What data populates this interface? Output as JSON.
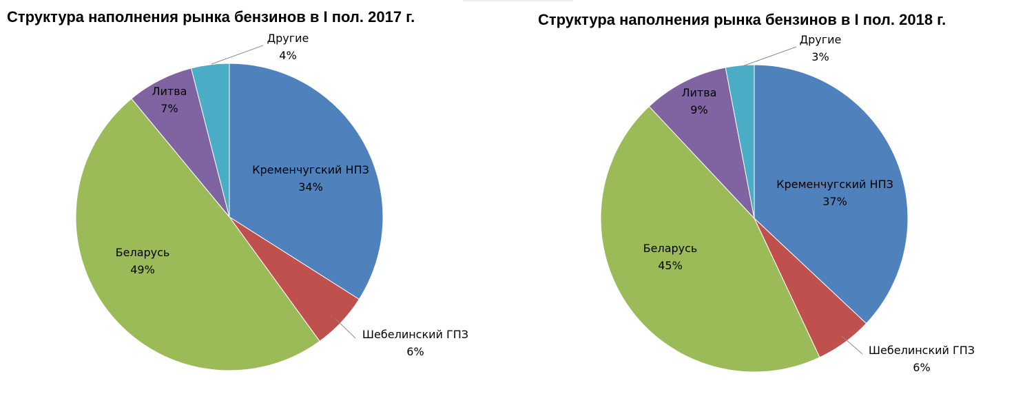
{
  "chart_data": [
    {
      "type": "pie",
      "title": "Структура наполнения рынка бензинов в I пол. 2017 г.",
      "series": [
        {
          "values": [
            {
              "label": "Кременчугский  НПЗ",
              "value": 34,
              "value_label": "34%",
              "color": "#4F81BD"
            },
            {
              "label": "Шебелинский  ГПЗ",
              "value": 6,
              "value_label": "6%",
              "color": "#C0504D"
            },
            {
              "label": "Беларусь",
              "value": 49,
              "value_label": "49%",
              "color": "#9BBB59"
            },
            {
              "label": "Литва",
              "value": 7,
              "value_label": "7%",
              "color": "#8064A2"
            },
            {
              "label": "Другие",
              "value": 4,
              "value_label": "4%",
              "color": "#4BACC6"
            }
          ]
        }
      ]
    },
    {
      "type": "pie",
      "title": "Структура наполнения рынка бензинов в I пол. 2018 г.",
      "series": [
        {
          "values": [
            {
              "label": "Кременчугский  НПЗ",
              "value": 37,
              "value_label": "37%",
              "color": "#4F81BD"
            },
            {
              "label": "Шебелинский  ГПЗ",
              "value": 6,
              "value_label": "6%",
              "color": "#C0504D"
            },
            {
              "label": "Беларусь",
              "value": 45,
              "value_label": "45%",
              "color": "#9BBB59"
            },
            {
              "label": "Литва",
              "value": 9,
              "value_label": "9%",
              "color": "#8064A2"
            },
            {
              "label": "Другие",
              "value": 3,
              "value_label": "3%",
              "color": "#4BACC6"
            }
          ]
        }
      ]
    }
  ]
}
